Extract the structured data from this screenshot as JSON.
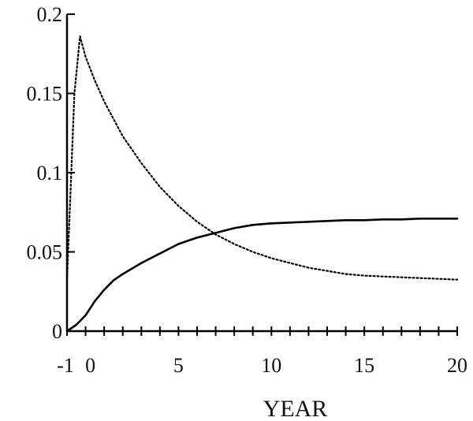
{
  "chart_data": {
    "type": "line",
    "title": "",
    "xlabel": "YEAR",
    "ylabel": "",
    "xlim": [
      -1,
      20
    ],
    "ylim": [
      0,
      0.2
    ],
    "x_ticks": [
      -1,
      0,
      5,
      10,
      15,
      20
    ],
    "x_tick_labels": [
      "-1",
      "0",
      "5",
      "10",
      "15",
      "20"
    ],
    "x_minor_tick_step": 1,
    "y_ticks": [
      0,
      0.05,
      0.1,
      0.15,
      0.2
    ],
    "y_tick_labels": [
      "0",
      "0.05",
      "0.1",
      "0.15",
      "0.2"
    ],
    "grid": false,
    "legend": "none",
    "series": [
      {
        "style": "solid",
        "color": "#000000",
        "x": [
          -1,
          -0.5,
          0,
          0.5,
          1,
          1.5,
          2,
          3,
          4,
          5,
          6,
          7,
          8,
          9,
          10,
          11,
          12,
          13,
          14,
          15,
          16,
          17,
          18,
          19,
          20
        ],
        "y": [
          0,
          0.004,
          0.01,
          0.019,
          0.026,
          0.032,
          0.036,
          0.043,
          0.049,
          0.055,
          0.059,
          0.062,
          0.065,
          0.067,
          0.068,
          0.0685,
          0.069,
          0.0695,
          0.07,
          0.07,
          0.0705,
          0.0705,
          0.071,
          0.071,
          0.071
        ]
      },
      {
        "style": "dotted",
        "color": "#000000",
        "x": [
          -1,
          -0.6,
          -0.3,
          0,
          0.5,
          1,
          2,
          3,
          4,
          5,
          6,
          7,
          8,
          9,
          10,
          11,
          12,
          13,
          14,
          15,
          16,
          17,
          18,
          19,
          20
        ],
        "y": [
          0.032,
          0.15,
          0.186,
          0.173,
          0.158,
          0.145,
          0.123,
          0.106,
          0.091,
          0.079,
          0.069,
          0.061,
          0.055,
          0.05,
          0.046,
          0.043,
          0.04,
          0.038,
          0.036,
          0.035,
          0.0345,
          0.034,
          0.0335,
          0.033,
          0.0325
        ]
      }
    ]
  }
}
